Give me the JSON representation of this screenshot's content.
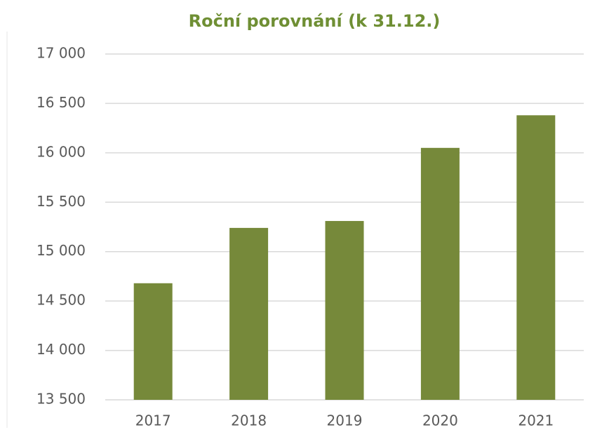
{
  "chart_data": {
    "type": "bar",
    "title": "Roční porovnání (k 31.12.)",
    "categories": [
      "2017",
      "2018",
      "2019",
      "2020",
      "2021"
    ],
    "values": [
      14680,
      15240,
      15310,
      16050,
      16380
    ],
    "color": "#76893a",
    "ylim": [
      13500,
      17000
    ],
    "yticks": [
      {
        "value": 13500,
        "label": "13 500"
      },
      {
        "value": 14000,
        "label": "14 000"
      },
      {
        "value": 14500,
        "label": "14 500"
      },
      {
        "value": 15000,
        "label": "15 000"
      },
      {
        "value": 15500,
        "label": "15 500"
      },
      {
        "value": 16000,
        "label": "16 000"
      },
      {
        "value": 16500,
        "label": "16 500"
      },
      {
        "value": 17000,
        "label": "17 000"
      }
    ],
    "grid": true
  }
}
